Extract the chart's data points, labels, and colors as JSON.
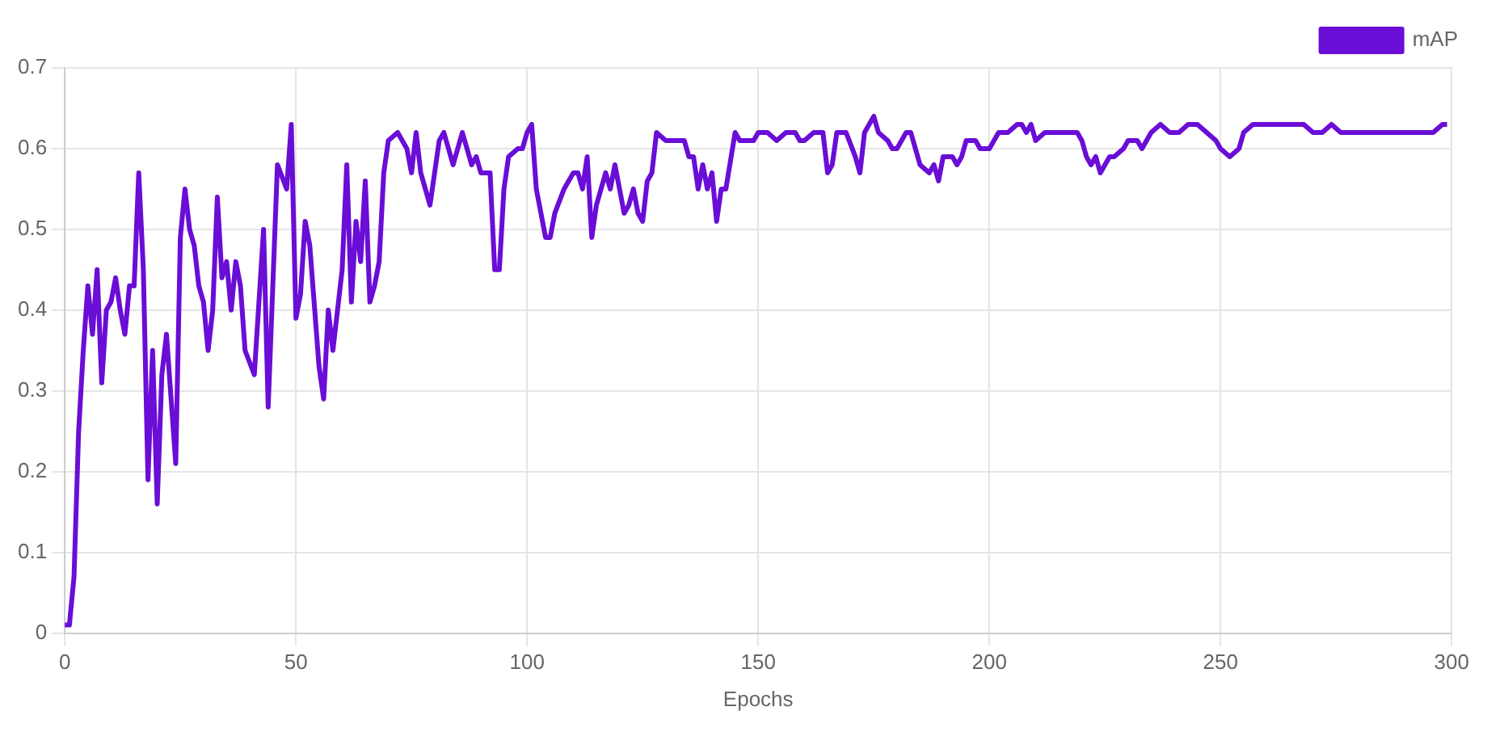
{
  "chart_data": {
    "type": "line",
    "xlabel": "Epochs",
    "xlim": [
      0,
      300
    ],
    "xticks": [
      0,
      50,
      100,
      150,
      200,
      250,
      300
    ],
    "ylim": [
      0,
      0.7
    ],
    "yticks": [
      0,
      0.1,
      0.2,
      0.3,
      0.4,
      0.5,
      0.6,
      0.7
    ],
    "grid": true,
    "legend": "top right",
    "marker": "none",
    "series": [
      {
        "name": "mAP",
        "color": "#6a0dd6",
        "x": [
          0,
          1,
          2,
          3,
          4,
          5,
          6,
          7,
          8,
          9,
          10,
          11,
          12,
          13,
          14,
          15,
          16,
          17,
          18,
          19,
          20,
          21,
          22,
          24,
          25,
          26,
          27,
          28,
          29,
          30,
          31,
          32,
          33,
          34,
          35,
          36,
          37,
          38,
          39,
          41,
          43,
          44,
          46,
          48,
          49,
          50,
          51,
          52,
          53,
          55,
          56,
          57,
          58,
          60,
          61,
          62,
          63,
          64,
          65,
          66,
          67,
          68,
          69,
          70,
          72,
          74,
          75,
          76,
          77,
          79,
          80,
          81,
          82,
          84,
          86,
          87,
          88,
          89,
          90,
          92,
          93,
          94,
          95,
          96,
          98,
          99,
          100,
          101,
          102,
          104,
          105,
          106,
          108,
          110,
          111,
          112,
          113,
          114,
          115,
          117,
          118,
          119,
          121,
          122,
          123,
          124,
          125,
          126,
          127,
          128,
          130,
          132,
          134,
          135,
          136,
          137,
          138,
          139,
          140,
          141,
          142,
          143,
          145,
          146,
          148,
          149,
          150,
          152,
          154,
          156,
          158,
          159,
          160,
          162,
          164,
          165,
          166,
          167,
          169,
          171,
          172,
          173,
          175,
          176,
          178,
          179,
          180,
          182,
          183,
          185,
          187,
          188,
          189,
          190,
          192,
          193,
          194,
          195,
          197,
          198,
          200,
          201,
          202,
          204,
          206,
          207,
          208,
          209,
          210,
          212,
          214,
          216,
          218,
          219,
          220,
          221,
          222,
          223,
          224,
          226,
          227,
          229,
          230,
          232,
          233,
          235,
          237,
          239,
          241,
          243,
          245,
          247,
          249,
          250,
          252,
          254,
          255,
          257,
          259,
          260,
          262,
          264,
          266,
          268,
          270,
          272,
          274,
          276,
          278,
          280,
          282,
          284,
          286,
          288,
          290,
          292,
          294,
          296,
          298,
          299
        ],
        "values": [
          0.01,
          0.01,
          0.07,
          0.25,
          0.35,
          0.43,
          0.37,
          0.45,
          0.31,
          0.4,
          0.41,
          0.44,
          0.4,
          0.37,
          0.43,
          0.43,
          0.57,
          0.45,
          0.19,
          0.35,
          0.16,
          0.32,
          0.37,
          0.21,
          0.49,
          0.55,
          0.5,
          0.48,
          0.43,
          0.41,
          0.35,
          0.4,
          0.54,
          0.44,
          0.46,
          0.4,
          0.46,
          0.43,
          0.35,
          0.32,
          0.5,
          0.28,
          0.58,
          0.55,
          0.63,
          0.39,
          0.42,
          0.51,
          0.48,
          0.33,
          0.29,
          0.4,
          0.35,
          0.45,
          0.58,
          0.41,
          0.51,
          0.46,
          0.56,
          0.41,
          0.43,
          0.46,
          0.57,
          0.61,
          0.62,
          0.6,
          0.57,
          0.62,
          0.57,
          0.53,
          0.57,
          0.61,
          0.62,
          0.58,
          0.62,
          0.6,
          0.58,
          0.59,
          0.57,
          0.57,
          0.45,
          0.45,
          0.55,
          0.59,
          0.6,
          0.6,
          0.62,
          0.63,
          0.55,
          0.49,
          0.49,
          0.52,
          0.55,
          0.57,
          0.57,
          0.55,
          0.59,
          0.49,
          0.53,
          0.57,
          0.55,
          0.58,
          0.52,
          0.53,
          0.55,
          0.52,
          0.51,
          0.56,
          0.57,
          0.62,
          0.61,
          0.61,
          0.61,
          0.59,
          0.59,
          0.55,
          0.58,
          0.55,
          0.57,
          0.51,
          0.55,
          0.55,
          0.62,
          0.61,
          0.61,
          0.61,
          0.62,
          0.62,
          0.61,
          0.62,
          0.62,
          0.61,
          0.61,
          0.62,
          0.62,
          0.57,
          0.58,
          0.62,
          0.62,
          0.59,
          0.57,
          0.62,
          0.64,
          0.62,
          0.61,
          0.6,
          0.6,
          0.62,
          0.62,
          0.58,
          0.57,
          0.58,
          0.56,
          0.59,
          0.59,
          0.58,
          0.59,
          0.61,
          0.61,
          0.6,
          0.6,
          0.61,
          0.62,
          0.62,
          0.63,
          0.63,
          0.62,
          0.63,
          0.61,
          0.62,
          0.62,
          0.62,
          0.62,
          0.62,
          0.61,
          0.59,
          0.58,
          0.59,
          0.57,
          0.59,
          0.59,
          0.6,
          0.61,
          0.61,
          0.6,
          0.62,
          0.63,
          0.62,
          0.62,
          0.63,
          0.63,
          0.62,
          0.61,
          0.6,
          0.59,
          0.6,
          0.62,
          0.63,
          0.63,
          0.63,
          0.63,
          0.63,
          0.63,
          0.63,
          0.62,
          0.62,
          0.63,
          0.62,
          0.62,
          0.62,
          0.62,
          0.62,
          0.62,
          0.62,
          0.62,
          0.62,
          0.62,
          0.62,
          0.63,
          0.63
        ]
      }
    ]
  }
}
